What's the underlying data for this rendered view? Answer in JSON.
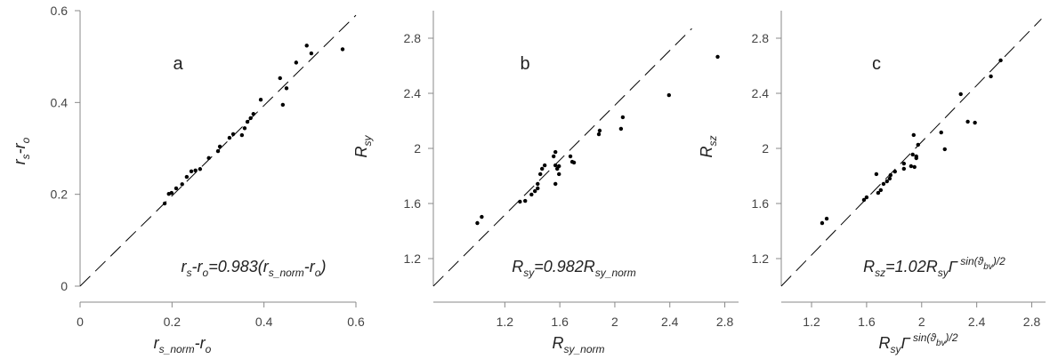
{
  "chart_data": [
    {
      "type": "scatter",
      "title": "a",
      "color": "#000000",
      "x": [
        0.184,
        0.193,
        0.199,
        0.209,
        0.222,
        0.232,
        0.242,
        0.251,
        0.261,
        0.28,
        0.3,
        0.304,
        0.325,
        0.333,
        0.352,
        0.358,
        0.364,
        0.371,
        0.377,
        0.393,
        0.435,
        0.441,
        0.449,
        0.47,
        0.493,
        0.503,
        0.571
      ],
      "y": [
        0.18,
        0.201,
        0.203,
        0.213,
        0.222,
        0.238,
        0.25,
        0.252,
        0.255,
        0.279,
        0.294,
        0.304,
        0.323,
        0.331,
        0.329,
        0.344,
        0.358,
        0.366,
        0.375,
        0.406,
        0.453,
        0.395,
        0.431,
        0.487,
        0.524,
        0.507,
        0.516
      ],
      "xlim": [
        0,
        0.6
      ],
      "ylim": [
        0,
        0.6
      ],
      "xticks": [
        0,
        0.2,
        0.4,
        0.6
      ],
      "yticks": [
        0,
        0.2,
        0.4,
        0.6
      ],
      "reference_line": {
        "x": [
          0,
          0.6
        ],
        "y": [
          0,
          0.59
        ]
      },
      "xlabel": [
        {
          "text": "r"
        },
        {
          "text": "s_norm",
          "style": "sub"
        },
        {
          "text": "-r"
        },
        {
          "text": "o",
          "style": "sub"
        }
      ],
      "ylabel": [
        {
          "text": "r"
        },
        {
          "text": "s",
          "style": "sub"
        },
        {
          "text": "-r"
        },
        {
          "text": "o",
          "style": "sub"
        }
      ],
      "annotation": [
        {
          "text": "r"
        },
        {
          "text": "s",
          "style": "sub"
        },
        {
          "text": "-r"
        },
        {
          "text": "o",
          "style": "sub"
        },
        {
          "text": "=0.983(r"
        },
        {
          "text": "s_norm",
          "style": "sub"
        },
        {
          "text": "-r"
        },
        {
          "text": "o",
          "style": "sub"
        },
        {
          "text": ")"
        }
      ]
    },
    {
      "type": "scatter",
      "title": "b",
      "color": "#000000",
      "x": [
        1.0,
        1.032,
        1.31,
        1.348,
        1.394,
        1.419,
        1.439,
        1.439,
        1.458,
        1.471,
        1.49,
        1.555,
        1.568,
        1.568,
        1.568,
        1.581,
        1.594,
        1.594,
        1.677,
        1.69,
        1.703,
        1.884,
        1.89,
        2.045,
        2.058,
        2.394,
        2.748
      ],
      "y": [
        1.458,
        1.503,
        1.613,
        1.619,
        1.665,
        1.69,
        1.71,
        1.742,
        1.813,
        1.852,
        1.877,
        1.942,
        1.974,
        1.877,
        1.742,
        1.852,
        1.871,
        1.813,
        1.942,
        1.903,
        1.897,
        2.103,
        2.129,
        2.142,
        2.226,
        2.387,
        2.665
      ],
      "xlim": [
        0.68,
        2.9
      ],
      "ylim": [
        1.0,
        3.0
      ],
      "xticks": [
        1.2,
        1.6,
        2,
        2.4,
        2.8
      ],
      "yticks": [
        1.2,
        1.6,
        2,
        2.4,
        2.8
      ],
      "reference_line": {
        "x": [
          0.68,
          2.56
        ],
        "y": [
          1.0,
          2.87
        ]
      },
      "xlabel": [
        {
          "text": "R"
        },
        {
          "text": "sy_norm",
          "style": "sub"
        }
      ],
      "ylabel": [
        {
          "text": "R"
        },
        {
          "text": "sy",
          "style": "sub"
        }
      ],
      "annotation": [
        {
          "text": "R"
        },
        {
          "text": "sy",
          "style": "sub"
        },
        {
          "text": "=0.982R"
        },
        {
          "text": "sy_norm",
          "style": "sub"
        }
      ]
    },
    {
      "type": "scatter",
      "title": "c",
      "color": "#000000",
      "x": [
        1.277,
        1.31,
        1.581,
        1.6,
        1.671,
        1.684,
        1.703,
        1.723,
        1.748,
        1.768,
        1.774,
        1.806,
        1.871,
        1.871,
        1.923,
        1.935,
        1.974,
        1.948,
        1.961,
        1.961,
        1.942,
        2.142,
        2.168,
        2.284,
        2.335,
        2.387,
        2.503,
        2.574
      ],
      "y": [
        1.458,
        1.49,
        1.626,
        1.645,
        1.813,
        1.677,
        1.697,
        1.742,
        1.761,
        1.781,
        1.806,
        1.832,
        1.852,
        1.89,
        1.871,
        1.955,
        2.026,
        1.865,
        1.929,
        1.942,
        2.097,
        2.116,
        1.994,
        2.394,
        2.194,
        2.187,
        2.523,
        2.639
      ],
      "xlim": [
        0.98,
        2.9
      ],
      "ylim": [
        1.0,
        3.0
      ],
      "xticks": [
        1.2,
        1.6,
        2,
        2.4,
        2.8
      ],
      "yticks": [
        1.2,
        1.6,
        2,
        2.4,
        2.8
      ],
      "reference_line": {
        "x": [
          0.98,
          2.87
        ],
        "y": [
          1.0,
          2.94
        ]
      },
      "xlabel": [
        {
          "text": "R"
        },
        {
          "text": "sy",
          "style": "sub"
        },
        {
          "text": "Γ"
        },
        {
          "text": " sin(ϑ",
          "style": "sup"
        },
        {
          "text": "bv",
          "style": "supsub"
        },
        {
          "text": ")/2",
          "style": "sup"
        }
      ],
      "ylabel": [
        {
          "text": "R"
        },
        {
          "text": "sz",
          "style": "sub"
        }
      ],
      "annotation": [
        {
          "text": "R"
        },
        {
          "text": "sz",
          "style": "sub"
        },
        {
          "text": "=1.02R"
        },
        {
          "text": "sy",
          "style": "sub"
        },
        {
          "text": "Γ"
        },
        {
          "text": " sin(ϑ",
          "style": "sup"
        },
        {
          "text": "bv",
          "style": "supsub"
        },
        {
          "text": ")/2",
          "style": "sup"
        }
      ]
    }
  ]
}
